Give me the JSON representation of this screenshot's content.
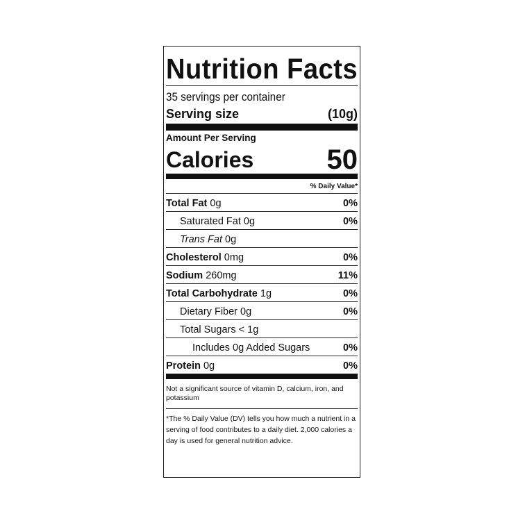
{
  "title": "Nutrition Facts",
  "servings_per_container": "35 servings per container",
  "serving_size": {
    "label": "Serving size",
    "value": "(10g)"
  },
  "amount_per_serving": "Amount Per Serving",
  "calories": {
    "label": "Calories",
    "value": "50"
  },
  "daily_value_header": "% Daily Value*",
  "nutrients": [
    {
      "name": "Total Fat",
      "amount": "0g",
      "dv": "0%",
      "bold": true,
      "indent": 0
    },
    {
      "name": "Saturated Fat",
      "amount": "0g",
      "dv": "0%",
      "bold": false,
      "indent": 1
    },
    {
      "name": "Trans Fat",
      "amount": "0g",
      "dv": "",
      "bold": false,
      "indent": 1
    },
    {
      "name": "Cholesterol",
      "amount": "0mg",
      "dv": "0%",
      "bold": true,
      "indent": 0
    },
    {
      "name": "Sodium",
      "amount": "260mg",
      "dv": "11%",
      "bold": true,
      "indent": 0
    },
    {
      "name": "Total Carbohydrate",
      "amount": "1g",
      "dv": "0%",
      "bold": true,
      "indent": 0
    },
    {
      "name": "Dietary Fiber",
      "amount": "0g",
      "dv": "0%",
      "bold": false,
      "indent": 1
    },
    {
      "name": "Total Sugars",
      "amount": "< 1g",
      "dv": "",
      "bold": false,
      "indent": 1
    },
    {
      "name": "Includes 0g Added Sugars",
      "amount": "",
      "dv": "0%",
      "bold": false,
      "indent": 2
    },
    {
      "name": "Protein",
      "amount": "0g",
      "dv": "0%",
      "bold": true,
      "indent": 0
    }
  ],
  "footnote_vitamins": "Not a significant source of vitamin D, calcium, iron, and potassium",
  "footnote_dv": "*The % Daily Value (DV) tells you how much a nutrient in a serving of food contributes to a daily diet. 2,000 calories a day is used for general nutrition advice."
}
